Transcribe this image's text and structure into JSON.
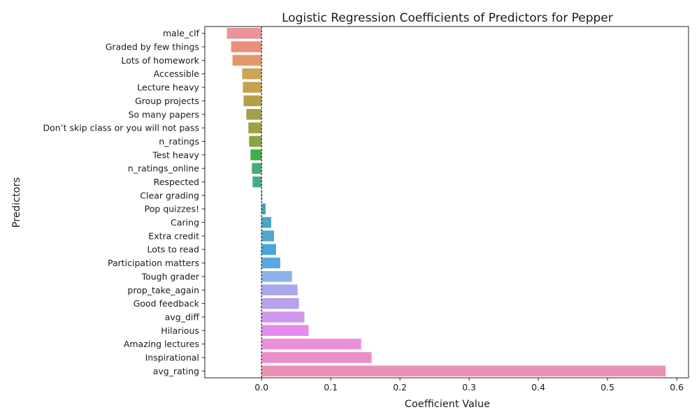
{
  "chart_data": {
    "type": "bar",
    "orientation": "horizontal",
    "title": "Logistic Regression Coefficients of Predictors for Pepper",
    "xlabel": "Coefficient Value",
    "ylabel": "Predictors",
    "xlim": [
      -0.082,
      0.617
    ],
    "xticks": [
      0.0,
      0.1,
      0.2,
      0.3,
      0.4,
      0.5,
      0.6
    ],
    "xtick_labels": [
      "0.0",
      "0.1",
      "0.2",
      "0.3",
      "0.4",
      "0.5",
      "0.6"
    ],
    "reference_line": 0,
    "grid": false,
    "categories": [
      "male_clf",
      "Graded by few things",
      "Lots of homework",
      "Accessible",
      "Lecture heavy",
      "Group projects",
      "So many papers",
      "Don’t skip class or you will not pass",
      "n_ratings",
      "Test heavy",
      "n_ratings_online",
      "Respected",
      "Clear grading",
      "Pop quizzes!",
      "Caring",
      "Extra credit",
      "Lots to read",
      "Participation matters",
      "Tough grader",
      "prop_take_again",
      "Good feedback",
      "avg_diff",
      "Hilarious",
      "Amazing lectures",
      "Inspirational",
      "avg_rating"
    ],
    "values": [
      -0.05,
      -0.044,
      -0.042,
      -0.028,
      -0.027,
      -0.026,
      -0.022,
      -0.019,
      -0.018,
      -0.016,
      -0.014,
      -0.013,
      0.001,
      0.006,
      0.014,
      0.018,
      0.021,
      0.027,
      0.044,
      0.052,
      0.054,
      0.062,
      0.068,
      0.144,
      0.159,
      0.584
    ],
    "colors": [
      "#ea949a",
      "#eb8f7a",
      "#e49868",
      "#cfa256",
      "#c9a050",
      "#b4a04b",
      "#a4a04a",
      "#99a346",
      "#88a442",
      "#3fae48",
      "#45ac7e",
      "#47a98a",
      "#47a89d",
      "#47a6ad",
      "#4aa7bc",
      "#4da8cb",
      "#4aa6d8",
      "#5aa7e1",
      "#8bb2ea",
      "#a9a8ee",
      "#b8a2ec",
      "#d096ee",
      "#e48beb",
      "#ea8fd9",
      "#e98fc8",
      "#e891b4"
    ]
  }
}
